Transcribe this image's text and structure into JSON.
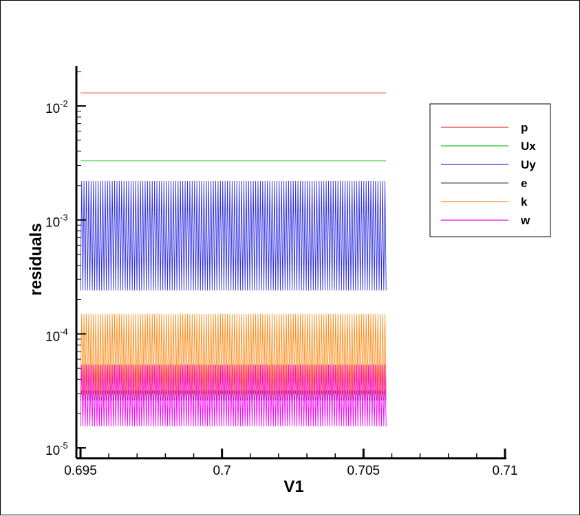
{
  "chart_data": {
    "type": "line",
    "title": "",
    "xlabel": "V1",
    "ylabel": "residuals",
    "xlim": [
      0.695,
      0.71
    ],
    "ylim": [
      1e-05,
      0.025
    ],
    "yscale": "log",
    "grid": false,
    "legend_position": "top-right",
    "x_ticks": [
      {
        "value": 0.695,
        "label": "0.695"
      },
      {
        "value": 0.7,
        "label": "0.7"
      },
      {
        "value": 0.705,
        "label": "0.705"
      },
      {
        "value": 0.71,
        "label": "0.71"
      }
    ],
    "y_ticks": [
      {
        "value": 1e-05,
        "base": "10",
        "exp": "-5"
      },
      {
        "value": 0.0001,
        "base": "10",
        "exp": "-4"
      },
      {
        "value": 0.001,
        "base": "10",
        "exp": "-3"
      },
      {
        "value": 0.01,
        "base": "10",
        "exp": "-2"
      }
    ],
    "x_range": [
      0.695,
      0.7058
    ],
    "cycles": 130,
    "series": [
      {
        "name": "p",
        "color": "#e8363b",
        "min": 0.013,
        "max": 0.013
      },
      {
        "name": "Ux",
        "color": "#1ec51e",
        "min": 0.0033,
        "max": 0.0033
      },
      {
        "name": "Uy",
        "color": "#3030e0",
        "min": 0.00024,
        "max": 0.0022
      },
      {
        "name": "e",
        "color": "#555555",
        "min": 2.6e-05,
        "max": 3.2e-05
      },
      {
        "name": "k",
        "color": "#ff8c1a",
        "min": 2.8e-05,
        "max": 0.00015
      },
      {
        "name": "w",
        "color": "#ff00ff",
        "min": 1.55e-05,
        "max": 5.4e-05
      }
    ]
  }
}
